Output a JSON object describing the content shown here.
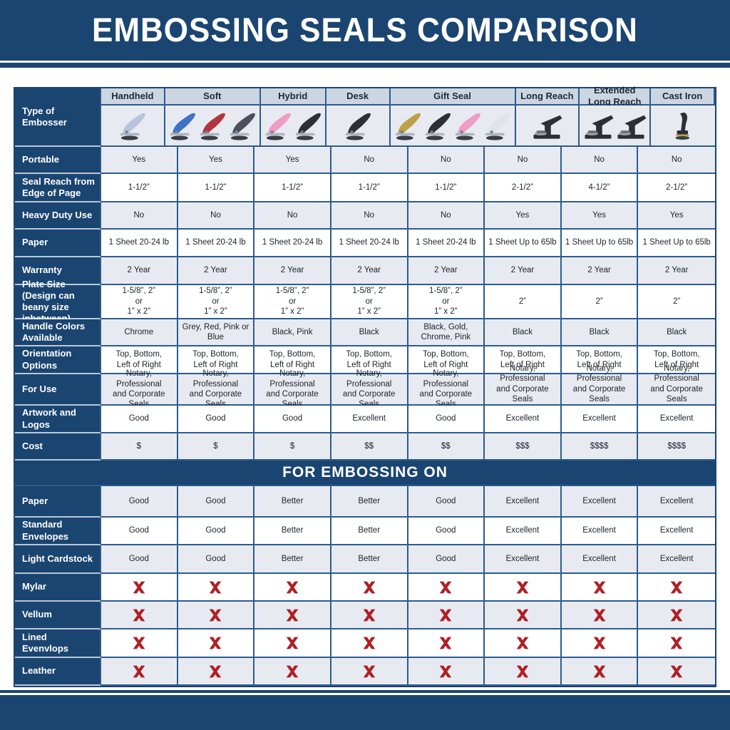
{
  "title": "EMBOSSING SEALS COMPARISON",
  "colors": {
    "navy": "#1b4571",
    "grid": "#2d5c8e",
    "header_cell": "#ccd6e2",
    "row_alt": "#e7ebf1",
    "label_separator": "#b9c7d6",
    "text_dark": "#20262e",
    "red_x": "#b01f24",
    "chrome": "#b9c4da",
    "blue": "#3e72c9",
    "red": "#b23442",
    "grey": "#4b505b",
    "pink": "#f09cc4",
    "black": "#2c2f36",
    "gold": "#bfa046",
    "white_handle": "#dfe3ea"
  },
  "chart_data": {
    "type": "table",
    "title": "EMBOSSING SEALS COMPARISON",
    "section_header": "FOR EMBOSSING ON",
    "row_header_label": "Type of Embosser",
    "columns": [
      "Handheld",
      "Soft",
      "Hybrid",
      "Desk",
      "Gift Seal",
      "Long Reach",
      "Extended Long Reach",
      "Cast Iron"
    ],
    "rows": [
      {
        "label": "Portable",
        "values": [
          "Yes",
          "Yes",
          "Yes",
          "No",
          "No",
          "No",
          "No",
          "No"
        ]
      },
      {
        "label": "Seal Reach from Edge of Page",
        "values": [
          "1-1/2”",
          "1-1/2”",
          "1-1/2”",
          "1-1/2”",
          "1-1/2”",
          "2-1/2”",
          "4-1/2”",
          "2-1/2”"
        ]
      },
      {
        "label": "Heavy Duty Use",
        "values": [
          "No",
          "No",
          "No",
          "No",
          "No",
          "Yes",
          "Yes",
          "Yes"
        ]
      },
      {
        "label": "Paper",
        "values": [
          "1 Sheet 20-24 lb",
          "1 Sheet 20-24 lb",
          "1 Sheet 20-24 lb",
          "1 Sheet 20-24 lb",
          "1 Sheet 20-24 lb",
          "1 Sheet Up to 65lb",
          "1 Sheet Up to 65lb",
          "1 Sheet Up to 65lb"
        ]
      },
      {
        "label": "Warranty",
        "values": [
          "2 Year",
          "2 Year",
          "2 Year",
          "2 Year",
          "2 Year",
          "2 Year",
          "2 Year",
          "2 Year"
        ]
      },
      {
        "label": "Plate Size (Design can beany size inbetween)",
        "values": [
          "1-5/8”, 2”\nor\n1” x 2”",
          "1-5/8”, 2”\nor\n1” x 2”",
          "1-5/8”, 2”\nor\n1” x 2”",
          "1-5/8”, 2”\nor\n1” x 2”",
          "1-5/8”, 2”\nor\n1” x 2”",
          "2”",
          "2”",
          "2”"
        ]
      },
      {
        "label": "Handle Colors Available",
        "values": [
          "Chrome",
          "Grey, Red, Pink or Blue",
          "Black, Pink",
          "Black",
          "Black, Gold, Chrome, Pink",
          "Black",
          "Black",
          "Black"
        ]
      },
      {
        "label": "Orientation Options",
        "values": [
          "Top, Bottom,\nLeft of Right",
          "Top, Bottom,\nLeft of Right",
          "Top, Bottom,\nLeft of Right",
          "Top, Bottom,\nLeft of Right",
          "Top, Bottom,\nLeft of Right",
          "Top, Bottom,\nLeft of Right",
          "Top, Bottom,\nLeft of Right",
          "Top, Bottom,\nLeft of Right"
        ]
      },
      {
        "label": "For Use",
        "values": [
          "Notary, Professional\nand Corporate Seals",
          "Notary, Professional\nand Corporate Seals",
          "Notary, Professional\nand Corporate Seals",
          "Notary, Professional\nand Corporate Seals",
          "Notary, Professional\nand Corporate Seals",
          "Notary, Professional\nand Corporate Seals\nLogos and Artwork",
          "Notary, Professional\nand Corporate Seals\nLogos and Artwork",
          "Notary, Professional\nand Corporate Seals\nLogos and Artwork"
        ]
      },
      {
        "label": "Artwork and Logos",
        "values": [
          "Good",
          "Good",
          "Good",
          "Excellent",
          "Good",
          "Excellent",
          "Excellent",
          "Excellent"
        ]
      },
      {
        "label": "Cost",
        "values": [
          "$",
          "$",
          "$",
          "$$",
          "$$",
          "$$$",
          "$$$$",
          "$$$$"
        ]
      }
    ],
    "embossing_rows": [
      {
        "label": "Paper",
        "values": [
          "Good",
          "Good",
          "Better",
          "Better",
          "Good",
          "Excellent",
          "Excellent",
          "Excellent"
        ]
      },
      {
        "label": "Standard Envelopes",
        "values": [
          "Good",
          "Good",
          "Better",
          "Better",
          "Good",
          "Excellent",
          "Excellent",
          "Excellent"
        ]
      },
      {
        "label": "Light Cardstock",
        "values": [
          "Good",
          "Good",
          "Better",
          "Better",
          "Good",
          "Excellent",
          "Excellent",
          "Excellent"
        ]
      },
      {
        "label": "Mylar",
        "type": "x",
        "values": [
          "x",
          "x",
          "x",
          "x",
          "x",
          "x",
          "x",
          "x"
        ]
      },
      {
        "label": "Vellum",
        "type": "x",
        "values": [
          "x",
          "x",
          "x",
          "x",
          "x",
          "x",
          "x",
          "x"
        ]
      },
      {
        "label": "Lined Evenvlops",
        "type": "x",
        "values": [
          "x",
          "x",
          "x",
          "x",
          "x",
          "x",
          "x",
          "x"
        ]
      },
      {
        "label": "Leather",
        "type": "x",
        "values": [
          "x",
          "x",
          "x",
          "x",
          "x",
          "x",
          "x",
          "x"
        ]
      }
    ]
  },
  "product_images": [
    {
      "column": "Handheld",
      "items": [
        {
          "shape": "hand",
          "color_key": "chrome"
        }
      ]
    },
    {
      "column": "Soft",
      "items": [
        {
          "shape": "hand",
          "color_key": "blue"
        },
        {
          "shape": "hand",
          "color_key": "red"
        },
        {
          "shape": "hand",
          "color_key": "grey"
        }
      ]
    },
    {
      "column": "Hybrid",
      "items": [
        {
          "shape": "hand",
          "color_key": "pink"
        },
        {
          "shape": "hand",
          "color_key": "black"
        }
      ]
    },
    {
      "column": "Desk",
      "items": [
        {
          "shape": "hand",
          "color_key": "black"
        }
      ]
    },
    {
      "column": "Gift Seal",
      "items": [
        {
          "shape": "hand",
          "color_key": "gold"
        },
        {
          "shape": "hand",
          "color_key": "black"
        },
        {
          "shape": "hand",
          "color_key": "pink"
        },
        {
          "shape": "hand",
          "color_key": "white_handle"
        }
      ]
    },
    {
      "column": "Long Reach",
      "items": [
        {
          "shape": "press",
          "color_key": "black"
        }
      ]
    },
    {
      "column": "Extended Long Reach",
      "items": [
        {
          "shape": "press",
          "color_key": "black"
        },
        {
          "shape": "press",
          "color_key": "black"
        }
      ]
    },
    {
      "column": "Cast Iron",
      "items": [
        {
          "shape": "upright",
          "color_key": "black"
        }
      ]
    }
  ],
  "icons": {
    "x_icon": "red-x-mark"
  }
}
